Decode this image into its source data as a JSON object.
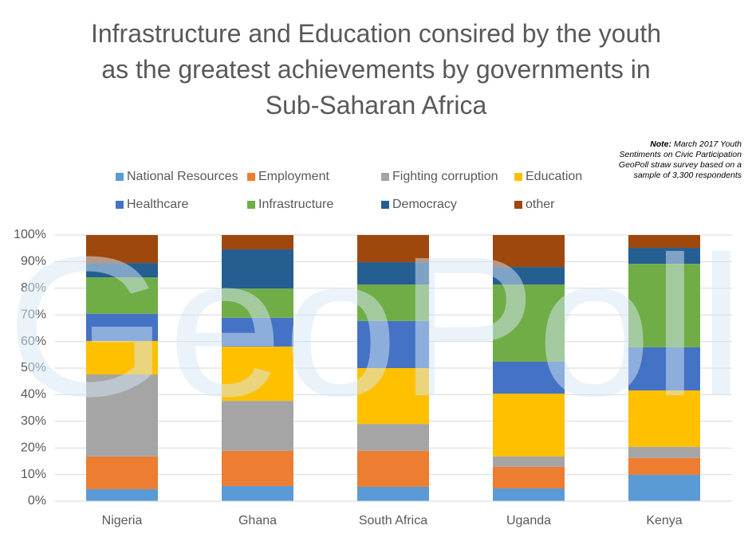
{
  "chart_data": {
    "type": "stacked_bar",
    "title": "Infrastructure and Education consired by the youth as the greatest achievements by governments in Sub-Saharan Africa",
    "note_label": "Note:",
    "note": "March 2017  Youth Sentiments on Civic Participation GeoPoll straw survey based on a sample of 3,300 respondents",
    "watermark": "GeoPoll",
    "categories": [
      "Nigeria",
      "Ghana",
      "South Africa",
      "Uganda",
      "Kenya"
    ],
    "series": [
      {
        "name": "National Resources",
        "color": "#5b9bd5",
        "values": [
          4.5,
          5.7,
          5.4,
          4.8,
          9.9
        ]
      },
      {
        "name": "Employment",
        "color": "#ed7d31",
        "values": [
          12.3,
          13.2,
          13.5,
          8.1,
          6.3
        ]
      },
      {
        "name": "Fighting corruption",
        "color": "#a5a5a5",
        "values": [
          30.8,
          18.8,
          10.1,
          3.9,
          4.2
        ]
      },
      {
        "name": "Education",
        "color": "#ffc000",
        "values": [
          12.6,
          20.4,
          21.0,
          23.6,
          21.2
        ]
      },
      {
        "name": "Healthcare",
        "color": "#4472c4",
        "values": [
          10.2,
          10.8,
          17.7,
          12.0,
          16.2
        ]
      },
      {
        "name": "Infrastructure",
        "color": "#70ad47",
        "values": [
          13.7,
          11.0,
          13.7,
          29.0,
          31.4
        ]
      },
      {
        "name": "Democracy",
        "color": "#255e91",
        "values": [
          5.4,
          14.7,
          8.4,
          6.6,
          6.0
        ]
      },
      {
        "name": "other",
        "color": "#9e480e",
        "values": [
          10.5,
          5.4,
          10.2,
          12.0,
          4.8
        ]
      }
    ],
    "ylim": [
      0,
      100
    ],
    "yticks": [
      {
        "value": 0,
        "label": "0%"
      },
      {
        "value": 10,
        "label": "10%"
      },
      {
        "value": 20,
        "label": "20%"
      },
      {
        "value": 30,
        "label": "30%"
      },
      {
        "value": 40,
        "label": "40%"
      },
      {
        "value": 50,
        "label": "50%"
      },
      {
        "value": 60,
        "label": "60%"
      },
      {
        "value": 70,
        "label": "70%"
      },
      {
        "value": 80,
        "label": "80%"
      },
      {
        "value": 90,
        "label": "90%"
      },
      {
        "value": 100,
        "label": "100%"
      }
    ],
    "grid": true
  }
}
